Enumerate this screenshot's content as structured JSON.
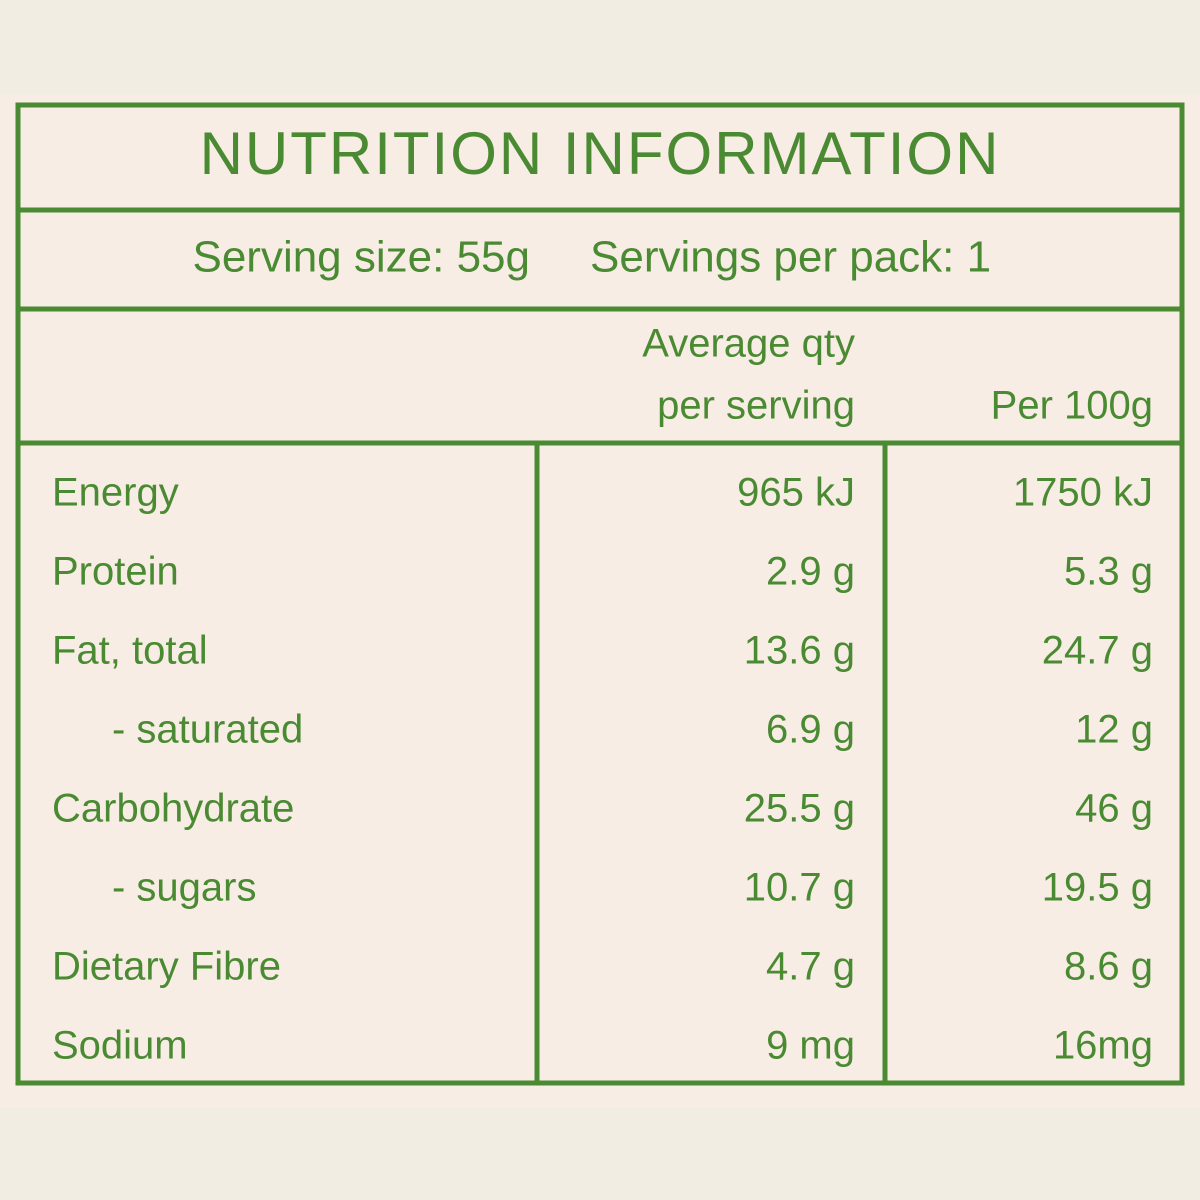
{
  "title": "NUTRITION INFORMATION",
  "serving": {
    "size": "Serving size: 55g",
    "per_pack": "Servings per pack: 1"
  },
  "header": {
    "per_serving": [
      "Average qty",
      "per serving"
    ],
    "per_100g": "Per 100g"
  },
  "rows": [
    {
      "name": "Energy",
      "per_serving": "965 kJ",
      "per_100g": "1750 kJ",
      "indent": false
    },
    {
      "name": "Protein",
      "per_serving": "2.9 g",
      "per_100g": "5.3 g",
      "indent": false
    },
    {
      "name": "Fat, total",
      "per_serving": "13.6 g",
      "per_100g": "24.7 g",
      "indent": false
    },
    {
      "name": "- saturated",
      "per_serving": "6.9 g",
      "per_100g": "12 g",
      "indent": true
    },
    {
      "name": "Carbohydrate",
      "per_serving": "25.5 g",
      "per_100g": "46 g",
      "indent": false
    },
    {
      "name": "- sugars",
      "per_serving": "10.7 g",
      "per_100g": "19.5 g",
      "indent": true
    },
    {
      "name": "Dietary Fibre",
      "per_serving": "4.7 g",
      "per_100g": "8.6 g",
      "indent": false
    },
    {
      "name": "Sodium",
      "per_serving": "9 mg",
      "per_100g": "16mg",
      "indent": false
    }
  ]
}
